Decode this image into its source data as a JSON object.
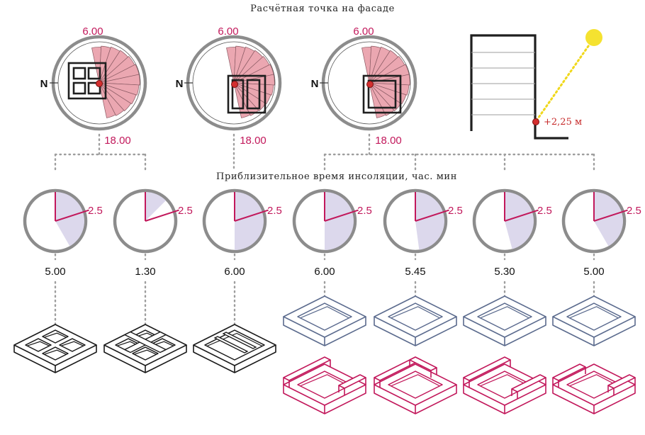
{
  "titles": {
    "top": "Расчётная точка на фасаде",
    "middle": "Приблизительное время инсоляции, час. мин"
  },
  "compass": {
    "north": "N",
    "start_time": "6.00",
    "end_time": "18.00"
  },
  "facade": {
    "height_label": "+2,25 м"
  },
  "pie_marker": "2.5",
  "durations": [
    {
      "label": "5.00",
      "fraction": 0.4167
    },
    {
      "label": "1.30",
      "fraction": 0.125
    },
    {
      "label": "6.00",
      "fraction": 0.5
    },
    {
      "label": "6.00",
      "fraction": 0.5
    },
    {
      "label": "5.45",
      "fraction": 0.479
    },
    {
      "label": "5.30",
      "fraction": 0.458
    },
    {
      "label": "5.00",
      "fraction": 0.4167
    }
  ],
  "colors": {
    "pink": "#c2185b",
    "sector_fill": "#eba7b1",
    "pie_fill": "#dcd8ec",
    "ring": "#8c8c8c",
    "blue_model": "#5b6b8e",
    "sun": "#f5e230",
    "sun_ray": "#f0d81c",
    "point": "#d32f2f"
  }
}
